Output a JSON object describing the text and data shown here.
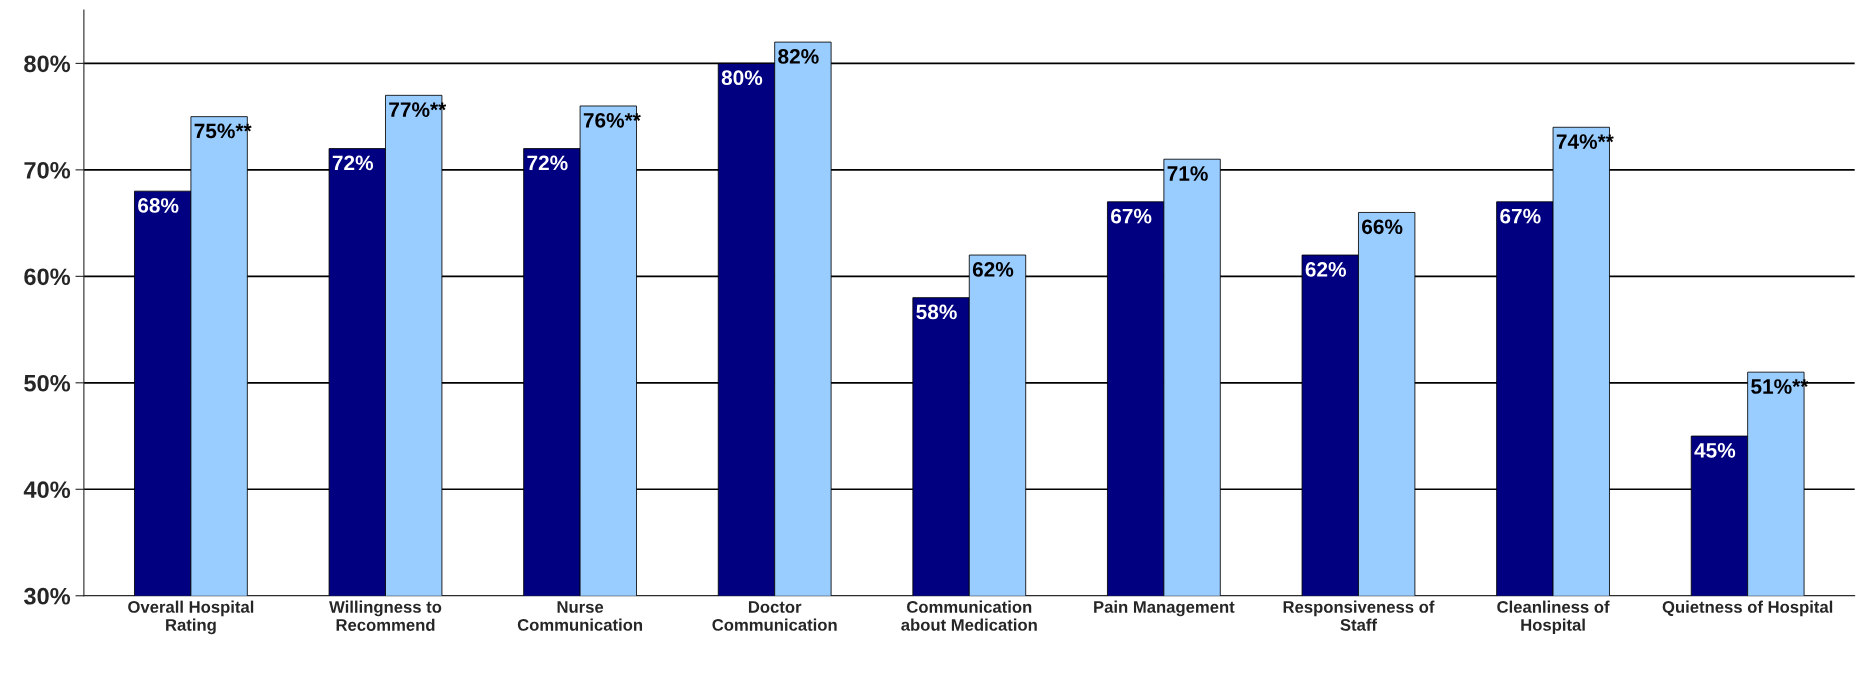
{
  "chart_data": {
    "type": "bar",
    "categories": [
      "Overall Hospital\nRating",
      "Willingness to\nRecommend",
      "Nurse\nCommunication",
      "Doctor\nCommunication",
      "Communication\nabout Medication",
      "Pain Management",
      "Responsiveness of\nStaff",
      "Cleanliness of\nHospital",
      "Quietness of Hospital"
    ],
    "series": [
      {
        "color": "#000080",
        "values": [
          68,
          72,
          72,
          80,
          58,
          67,
          62,
          67,
          45
        ],
        "value_labels": [
          "68%",
          "72%",
          "72%",
          "80%",
          "58%",
          "67%",
          "62%",
          "67%",
          "45%"
        ]
      },
      {
        "color": "#99ccff",
        "values": [
          75,
          77,
          76,
          82,
          62,
          71,
          66,
          74,
          51
        ],
        "value_labels": [
          "75%**",
          "77%**",
          "76%**",
          "82%",
          "62%",
          "71%",
          "66%",
          "74%**",
          "51%**"
        ]
      }
    ],
    "ylim": [
      30,
      85
    ],
    "yticks": [
      {
        "value": 30,
        "label": "30%"
      },
      {
        "value": 40,
        "label": "40%"
      },
      {
        "value": 50,
        "label": "50%"
      },
      {
        "value": 60,
        "label": "60%"
      },
      {
        "value": 70,
        "label": "70%"
      },
      {
        "value": 80,
        "label": "80%"
      }
    ],
    "grid": "y",
    "legend": false
  }
}
